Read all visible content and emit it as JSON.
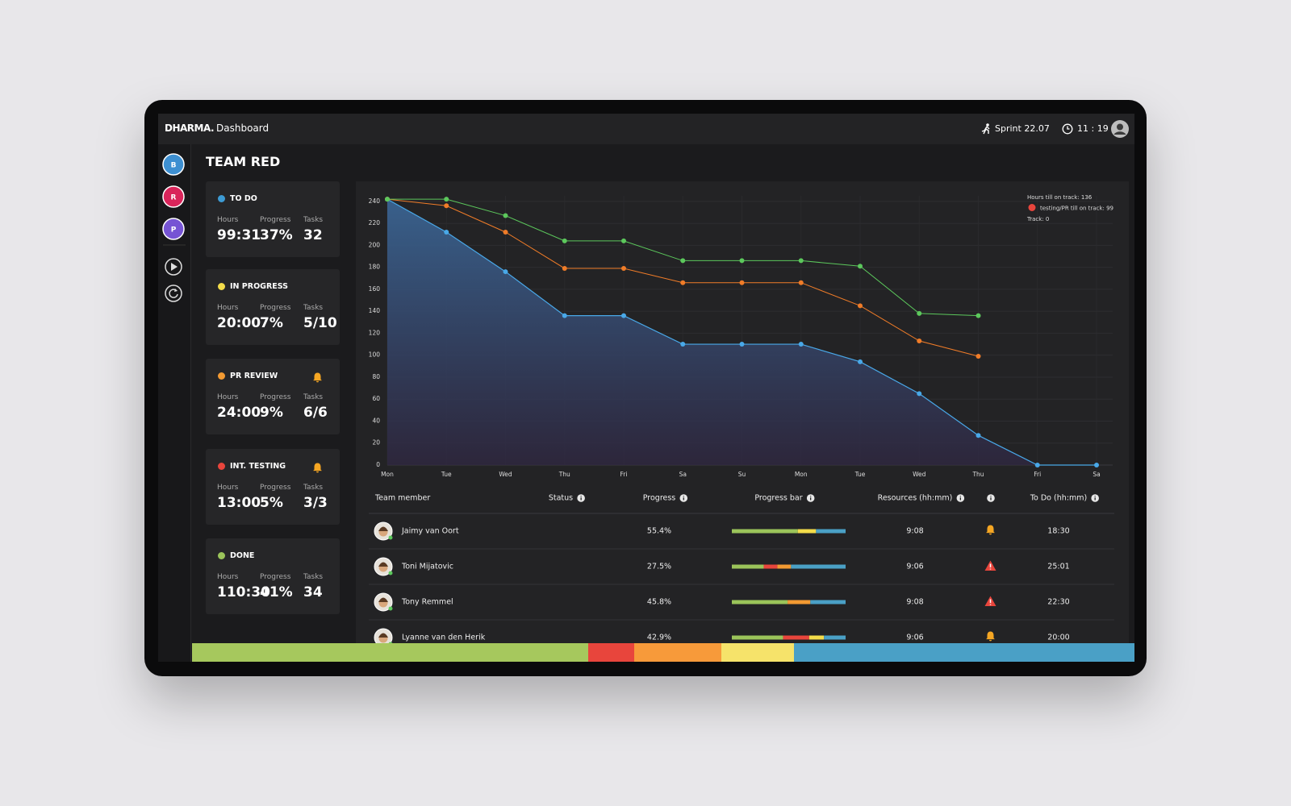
{
  "header": {
    "brand": "DHARMA.",
    "page": "Dashboard",
    "sprint": "Sprint 22.07",
    "time": "11 : 19"
  },
  "sidebar": {
    "teams": [
      {
        "letter": "B",
        "color": "#3d8fd1"
      },
      {
        "letter": "R",
        "color": "#d9245a"
      },
      {
        "letter": "P",
        "color": "#7654d4"
      }
    ]
  },
  "title": "TEAM RED",
  "card_labels": [
    "Hours",
    "Progress",
    "Tasks"
  ],
  "cards": [
    {
      "title": "TO DO",
      "color": "#3d9bd4",
      "hours": "99:31",
      "progress": "37%",
      "tasks": "32",
      "alert": false
    },
    {
      "title": "IN PROGRESS",
      "color": "#f3dc4a",
      "hours": "20:00",
      "progress": "7%",
      "tasks": "5/10",
      "alert": false
    },
    {
      "title": "PR REVIEW",
      "color": "#f39a32",
      "hours": "24:00",
      "progress": "9%",
      "tasks": "6/6",
      "alert": true
    },
    {
      "title": "INT. TESTING",
      "color": "#e8453c",
      "hours": "13:00",
      "progress": "5%",
      "tasks": "3/3",
      "alert": true
    },
    {
      "title": "DONE",
      "color": "#9bc45a",
      "hours": "110:30",
      "progress": "41%",
      "tasks": "34",
      "alert": false
    }
  ],
  "chart_data": {
    "type": "line",
    "categories": [
      "Mon",
      "Tue",
      "Wed",
      "Thu",
      "Fri",
      "Sa",
      "Su",
      "Mon",
      "Tue",
      "Wed",
      "Thu",
      "Fri",
      "Sa"
    ],
    "series": [
      {
        "color": "#49a8e8",
        "area": true,
        "values": [
          242,
          212,
          176,
          136,
          136,
          110,
          110,
          110,
          94,
          65,
          27,
          0,
          0
        ]
      },
      {
        "color": "#f07c28",
        "area": false,
        "values": [
          242,
          236,
          212,
          179,
          179,
          166,
          166,
          166,
          145,
          113,
          99,
          null,
          null
        ]
      },
      {
        "color": "#5cc85c",
        "area": false,
        "values": [
          242,
          242,
          227,
          204,
          204,
          186,
          186,
          186,
          181,
          138,
          136,
          null,
          null
        ]
      }
    ],
    "ylim": [
      0,
      245
    ],
    "yticks": [
      0,
      20,
      40,
      60,
      80,
      100,
      120,
      140,
      160,
      180,
      200,
      220,
      240
    ],
    "grid": true,
    "annotations": [
      {
        "text": "Hours till on track: 136",
        "color": null
      },
      {
        "text": "testing/PR till on track: 99",
        "color": "#e8453c"
      },
      {
        "text": "Track: 0",
        "color": null
      }
    ]
  },
  "table": {
    "columns": [
      "Team member",
      "Status",
      "Progress",
      "Progress bar",
      "Resources (hh:mm)",
      "To Do (hh:mm)"
    ],
    "rows": [
      {
        "name": "Jaimy van Oort",
        "progress": "55.4%",
        "bar": [
          {
            "value": 58,
            "color": "#9bc45a"
          },
          {
            "value": 16,
            "color": "#f3dc4a"
          },
          {
            "value": 26,
            "color": "#4aa0c6"
          }
        ],
        "resources": "9:08",
        "status": "bell",
        "todo": "18:30"
      },
      {
        "name": "Toni Mijatovic",
        "progress": "27.5%",
        "bar": [
          {
            "value": 28,
            "color": "#9bc45a"
          },
          {
            "value": 12,
            "color": "#e8453c"
          },
          {
            "value": 12,
            "color": "#f39a32"
          },
          {
            "value": 48,
            "color": "#4aa0c6"
          }
        ],
        "resources": "9:06",
        "status": "warning",
        "todo": "25:01"
      },
      {
        "name": "Tony Remmel",
        "progress": "45.8%",
        "bar": [
          {
            "value": 49,
            "color": "#9bc45a"
          },
          {
            "value": 20,
            "color": "#f39a32"
          },
          {
            "value": 31,
            "color": "#4aa0c6"
          }
        ],
        "resources": "9:08",
        "status": "warning",
        "todo": "22:30"
      },
      {
        "name": "Lyanne van den Herik",
        "progress": "42.9%",
        "bar": [
          {
            "value": 45,
            "color": "#9bc45a"
          },
          {
            "value": 23,
            "color": "#e8453c"
          },
          {
            "value": 13,
            "color": "#f3dc4a"
          },
          {
            "value": 19,
            "color": "#4aa0c6"
          }
        ],
        "resources": "9:06",
        "status": "bell",
        "todo": "20:00"
      }
    ]
  },
  "summary_bar": [
    {
      "value": 42.1,
      "color": "#a6c85d"
    },
    {
      "value": 4.9,
      "color": "#e8453c"
    },
    {
      "value": 9.2,
      "color": "#f79a3a"
    },
    {
      "value": 7.7,
      "color": "#f6e36a"
    },
    {
      "value": 36.2,
      "color": "#4aa0c6"
    }
  ]
}
